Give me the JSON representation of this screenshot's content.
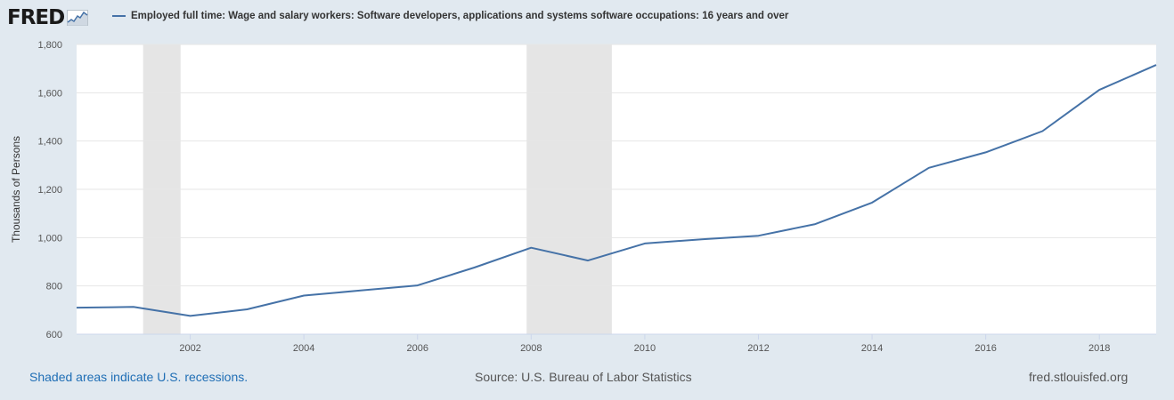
{
  "header": {
    "logo_text": "FRED",
    "logo_icon": "chart-line-icon",
    "legend_label": "Employed full time: Wage and salary workers: Software developers, applications and systems software occupations: 16 years and over"
  },
  "footer": {
    "recession_note": "Shaded areas indicate U.S. recessions.",
    "source": "Source: U.S. Bureau of Labor Statistics",
    "site": "fred.stlouisfed.org"
  },
  "colors": {
    "background": "#e1e9f0",
    "plot_background": "#ffffff",
    "line": "#4572a7",
    "recession": "#e5e5e5",
    "gridline": "#e6e6e6",
    "link": "#1f6eb5"
  },
  "chart_data": {
    "type": "line",
    "title": "",
    "xlabel": "",
    "ylabel": "Thousands of Persons",
    "xlim": [
      2000,
      2019
    ],
    "ylim": [
      600,
      1800
    ],
    "x_ticks": [
      "2002",
      "2004",
      "2006",
      "2008",
      "2010",
      "2012",
      "2014",
      "2016",
      "2018"
    ],
    "y_ticks": [
      "600",
      "800",
      "1,000",
      "1,200",
      "1,400",
      "1,600",
      "1,800"
    ],
    "grid": true,
    "recessions": [
      {
        "start": 2001.17,
        "end": 2001.83
      },
      {
        "start": 2007.92,
        "end": 2009.42
      }
    ],
    "series": [
      {
        "name": "Employed full time: Wage and salary workers: Software developers, applications and systems software occupations: 16 years and over",
        "color": "#4572a7",
        "x": [
          2000,
          2001,
          2002,
          2003,
          2004,
          2005,
          2006,
          2007,
          2008,
          2009,
          2010,
          2011,
          2012,
          2013,
          2014,
          2015,
          2016,
          2017,
          2018,
          2019
        ],
        "y": [
          710,
          713,
          676,
          703,
          760,
          781,
          802,
          876,
          958,
          905,
          976,
          993,
          1008,
          1056,
          1145,
          1289,
          1353,
          1441,
          1612,
          1715
        ]
      }
    ]
  }
}
